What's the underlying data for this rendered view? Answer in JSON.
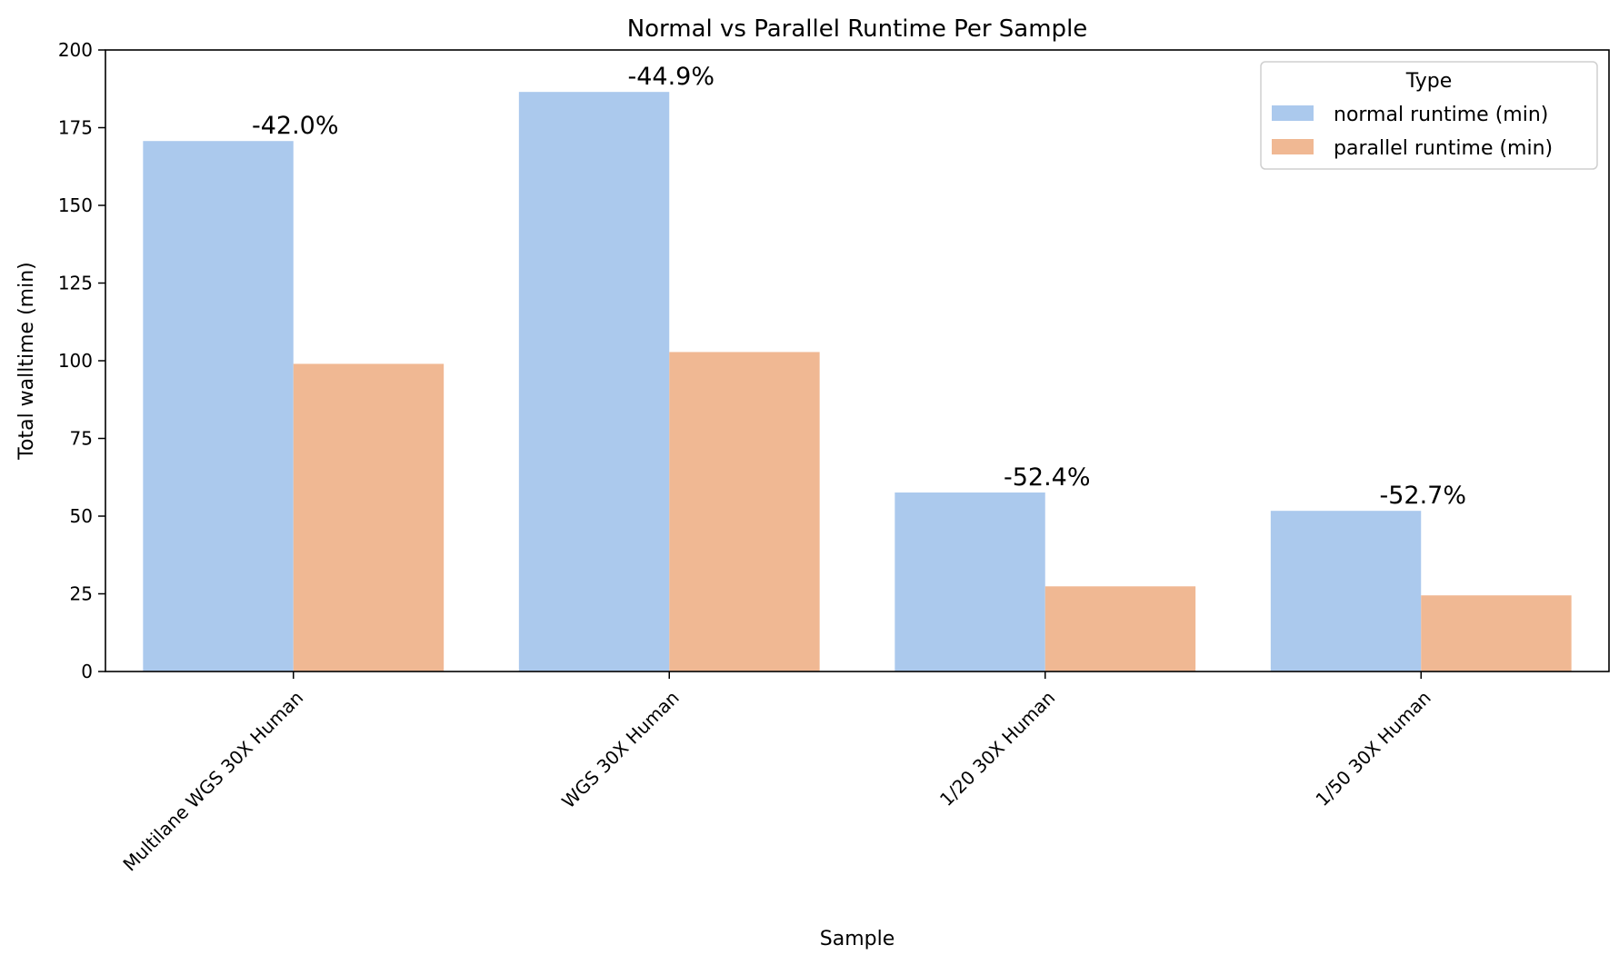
{
  "chart_data": {
    "type": "bar",
    "title": "Normal vs Parallel Runtime Per Sample",
    "xlabel": "Sample",
    "ylabel": "Total walltime (min)",
    "ylim": [
      0,
      200
    ],
    "yticks": [
      0,
      25,
      50,
      75,
      100,
      125,
      150,
      175,
      200
    ],
    "categories": [
      "Multilane WGS 30X Human",
      "WGS 30X Human",
      "1/20 30X Human",
      "1/50 30X Human"
    ],
    "series": [
      {
        "name": "normal runtime (min)",
        "color": "#abc9ed",
        "values": [
          170.7,
          186.5,
          57.6,
          51.7
        ]
      },
      {
        "name": "parallel runtime (min)",
        "color": "#f0b893",
        "values": [
          99.0,
          102.8,
          27.4,
          24.5
        ]
      }
    ],
    "annotations": [
      "-42.0%",
      "-44.9%",
      "-52.4%",
      "-52.7%"
    ],
    "legend": {
      "title": "Type",
      "position": "top-right"
    },
    "grid": false
  }
}
